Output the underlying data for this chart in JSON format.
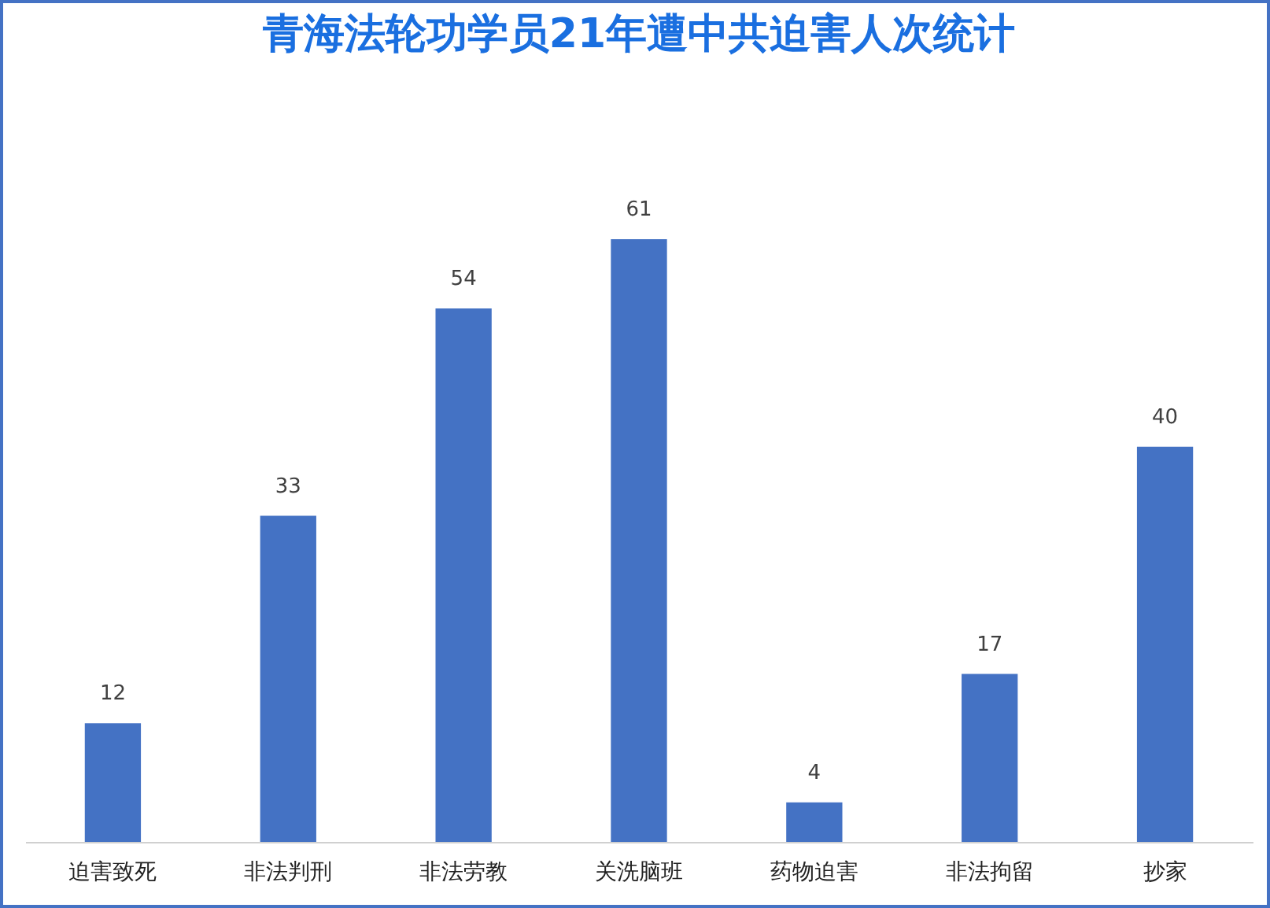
{
  "chart_data": {
    "type": "bar",
    "title": "青海法轮功学员21年遭中共迫害人次统计",
    "categories": [
      "迫害致死",
      "非法判刑",
      "非法劳教",
      "关洗脑班",
      "药物迫害",
      "非法拘留",
      "抄家"
    ],
    "values": [
      12,
      33,
      54,
      61,
      4,
      17,
      40
    ],
    "color": "#4472c4",
    "data_labels": true
  }
}
